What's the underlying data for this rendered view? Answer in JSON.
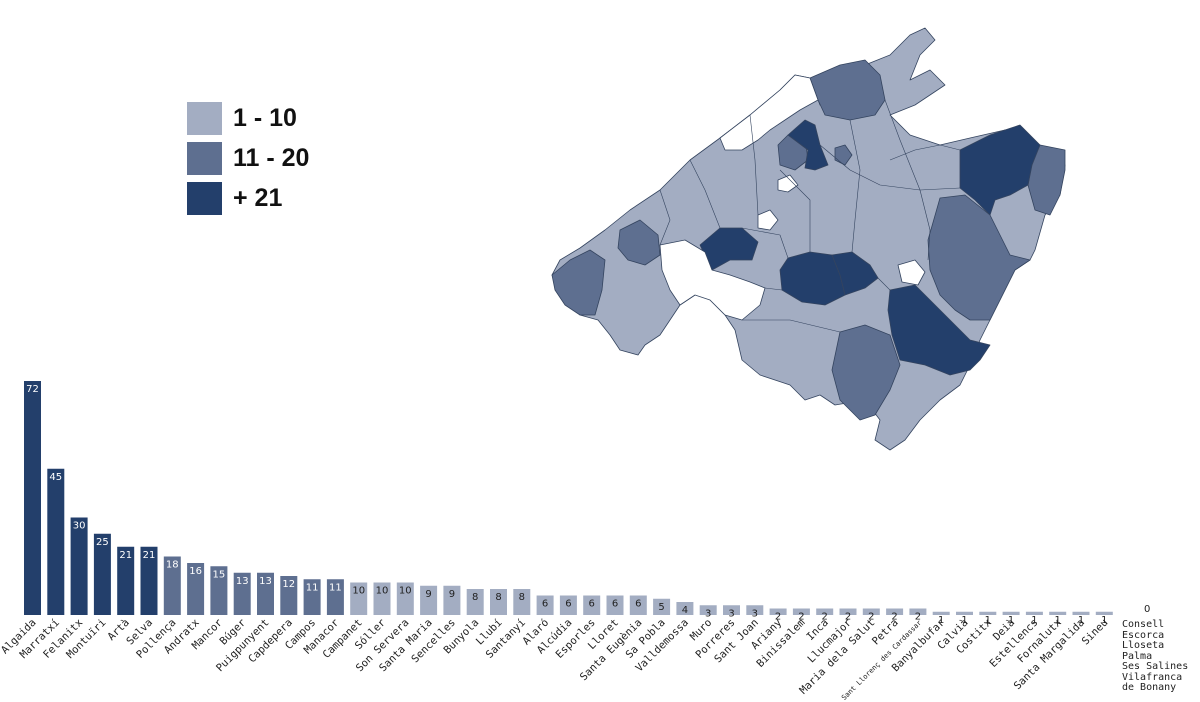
{
  "legend": [
    {
      "label": "1 - 10",
      "color": "#a3adc2"
    },
    {
      "label": "11 - 20",
      "color": "#5e6f90"
    },
    {
      "label": "+ 21",
      "color": "#233f6b"
    }
  ],
  "map": {
    "colors": {
      "light": "#a3adc2",
      "mid": "#5e6f90",
      "dark": "#233f6b",
      "white": "#ffffff"
    }
  },
  "chart_data": {
    "type": "bar",
    "categories": [
      "Algaida",
      "Marratxí",
      "Felanitx",
      "Montuïri",
      "Artà",
      "Selva",
      "Pollença",
      "Andratx",
      "Mancor",
      "Búger",
      "Puigpunyent",
      "Capdepera",
      "Campos",
      "Manacor",
      "Campanet",
      "Sóller",
      "Son Servera",
      "Santa Maria",
      "Sencelles",
      "Bunyola",
      "Llubí",
      "Santanyí",
      "Alaró",
      "Alcúdia",
      "Esporles",
      "Lloret",
      "Santa Eugènia",
      "Sa Pobla",
      "Valldemossa",
      "Muro",
      "Porreres",
      "Sant Joan",
      "Ariany",
      "Binissalem",
      "Inca",
      "Llucmajor",
      "Maria dela Salut",
      "Petra",
      "Sant Llorenç des Cardassar",
      "Banyalbufar",
      "Calvià",
      "Costitx",
      "Deià",
      "Estellencs",
      "Fornalutx",
      "Santa Margalida",
      "Sineu"
    ],
    "values": [
      72,
      45,
      30,
      25,
      21,
      21,
      18,
      16,
      15,
      13,
      13,
      12,
      11,
      11,
      10,
      10,
      10,
      9,
      9,
      8,
      8,
      8,
      6,
      6,
      6,
      6,
      6,
      5,
      4,
      3,
      3,
      3,
      2,
      2,
      2,
      2,
      2,
      2,
      2,
      1,
      1,
      1,
      1,
      1,
      1,
      1,
      1
    ],
    "zero_value": "0",
    "zero_categories": [
      "Consell",
      "Escorca",
      "Lloseta",
      "Palma",
      "Ses Salines",
      "Vilafranca de Bonany"
    ],
    "colors": {
      "low": "#a3adc2",
      "mid": "#5e6f90",
      "high": "#233f6b"
    }
  }
}
